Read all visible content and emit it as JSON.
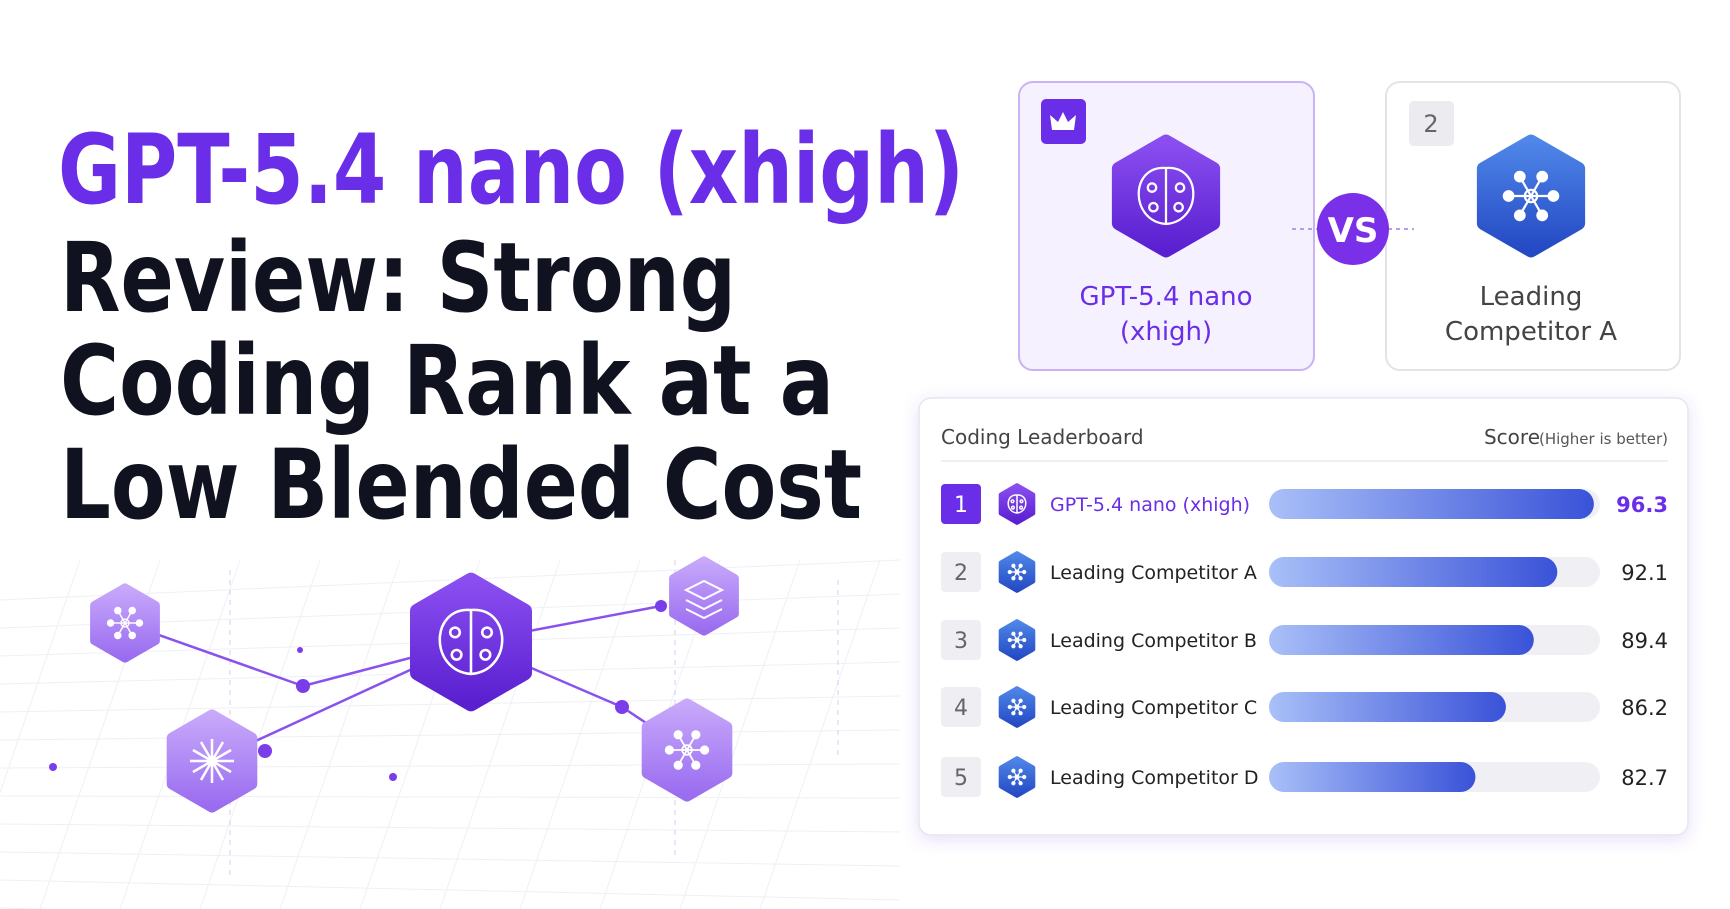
{
  "title": {
    "highlight": "GPT-5.4 nano (xhigh)",
    "lines": [
      "Review: Strong",
      "Coding Rank at a",
      "Low Blended Cost"
    ]
  },
  "versus": {
    "left_name": [
      "GPT-5.4 nano",
      "(xhigh)"
    ],
    "vs": "VS",
    "right_rank": 2,
    "right_name": [
      "Leading",
      "Competitor A"
    ]
  },
  "leaderboard": {
    "title": "Coding Leaderboard",
    "score_label": "Score",
    "score_note": "(Higher is better)",
    "xlim": [
      59,
      97
    ],
    "rows": [
      {
        "rank": 1,
        "name": "GPT-5.4 nano (xhigh)",
        "score": 96.3
      },
      {
        "rank": 2,
        "name": "Leading Competitor A",
        "score": 92.1
      },
      {
        "rank": 3,
        "name": "Leading Competitor B",
        "score": 89.4
      },
      {
        "rank": 4,
        "name": "Leading Competitor C",
        "score": 86.2
      },
      {
        "rank": 5,
        "name": "Leading Competitor D",
        "score": 82.7
      }
    ]
  }
}
